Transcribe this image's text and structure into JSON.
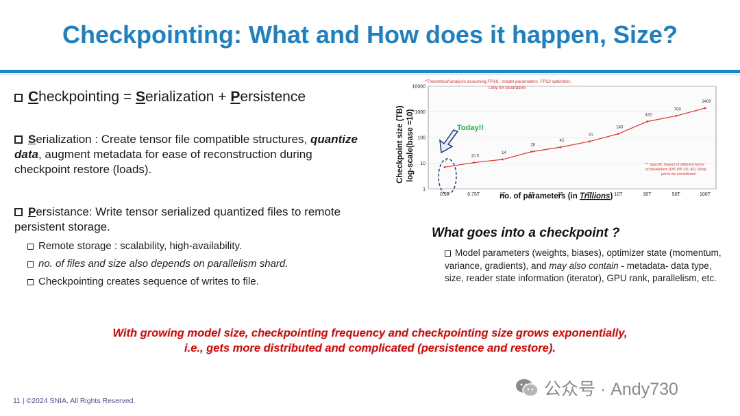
{
  "slide": {
    "title": "Checkpointing: What and How does it happen, Size?",
    "bullet1": {
      "C": "C",
      "heckpointing": "heckpointing",
      "eq": " = ",
      "S": "S",
      "erialization": "erialization",
      "plus": " + ",
      "P": "P",
      "ersistence": "ersistence"
    },
    "bullet2": {
      "S": "S",
      "lead": "erialization : Create tensor file compatible structures,",
      "bold": "quantize data",
      "rest": ", augment metadata for ease of reconstruction during checkpoint restore (loads)."
    },
    "bullet3": {
      "P": "P",
      "text": "ersistance: Write tensor serialized quantized files to remote persistent storage."
    },
    "sub_bullets": [
      "Remote storage : scalability, high-availability.",
      "no. of files and size also depends on parallelism shard.",
      "Checkpointing creates sequence of writes to file."
    ],
    "what_title": "What goes into a checkpoint ?",
    "what_body_a": "Model parameters (weights, biases), optimizer state (momentum, variance, gradients), and ",
    "what_body_em": "may also contain",
    "what_body_b": " - metadata- data type, size, reader state information (iterator), GPU rank, parallelism, etc.",
    "red_line1": "With growing model size, checkpointing frequency and checkpointing size grows exponentially,",
    "red_line2": "i.e., gets more distributed and complicated (persistence and restore).",
    "copyright": "11 | ©2024 SNIA. All Rights Reserved.",
    "watermark": "公众号 · Andy730"
  },
  "chart_data": {
    "type": "line",
    "note_top": "*Theoretical analysis assuming FP16 : model parameters, FP32 optimizer.",
    "note_top2": "Only for illustration.",
    "note_right1": "** Specific Impact of different forms",
    "note_right2": "of parallelism (DP, PP, 3D, 4D, Zero)",
    "note_right3": "yet to be considered.",
    "today_label": "Today!!",
    "ylabel_line1": "Checkpoint size (TB)",
    "ylabel_line2": "log-scale(base =10)",
    "xlabel_prefix": "no. of parameters (in ",
    "xlabel_em": "Trillions",
    "xlabel_suffix": ")",
    "y_ticks": [
      "10000",
      "1000",
      "100",
      "10",
      "1"
    ],
    "categories": [
      "0.5T",
      "0.75T",
      "1T",
      "2T",
      "3T",
      "5T",
      "10T",
      "30T",
      "50T",
      "100T"
    ],
    "series": [
      {
        "values": [
          7,
          10.5,
          14,
          28,
          42,
          70,
          140,
          420,
          700,
          1400
        ]
      }
    ],
    "data_labels": [
      "7",
      "10.5",
      "14",
      "28",
      "42",
      "70",
      "140",
      "420",
      "700",
      "1400"
    ],
    "colors": {
      "line": "#d9342b",
      "today": "#2aa84a",
      "annot": "#223a7a",
      "note": "#d9342b"
    }
  }
}
